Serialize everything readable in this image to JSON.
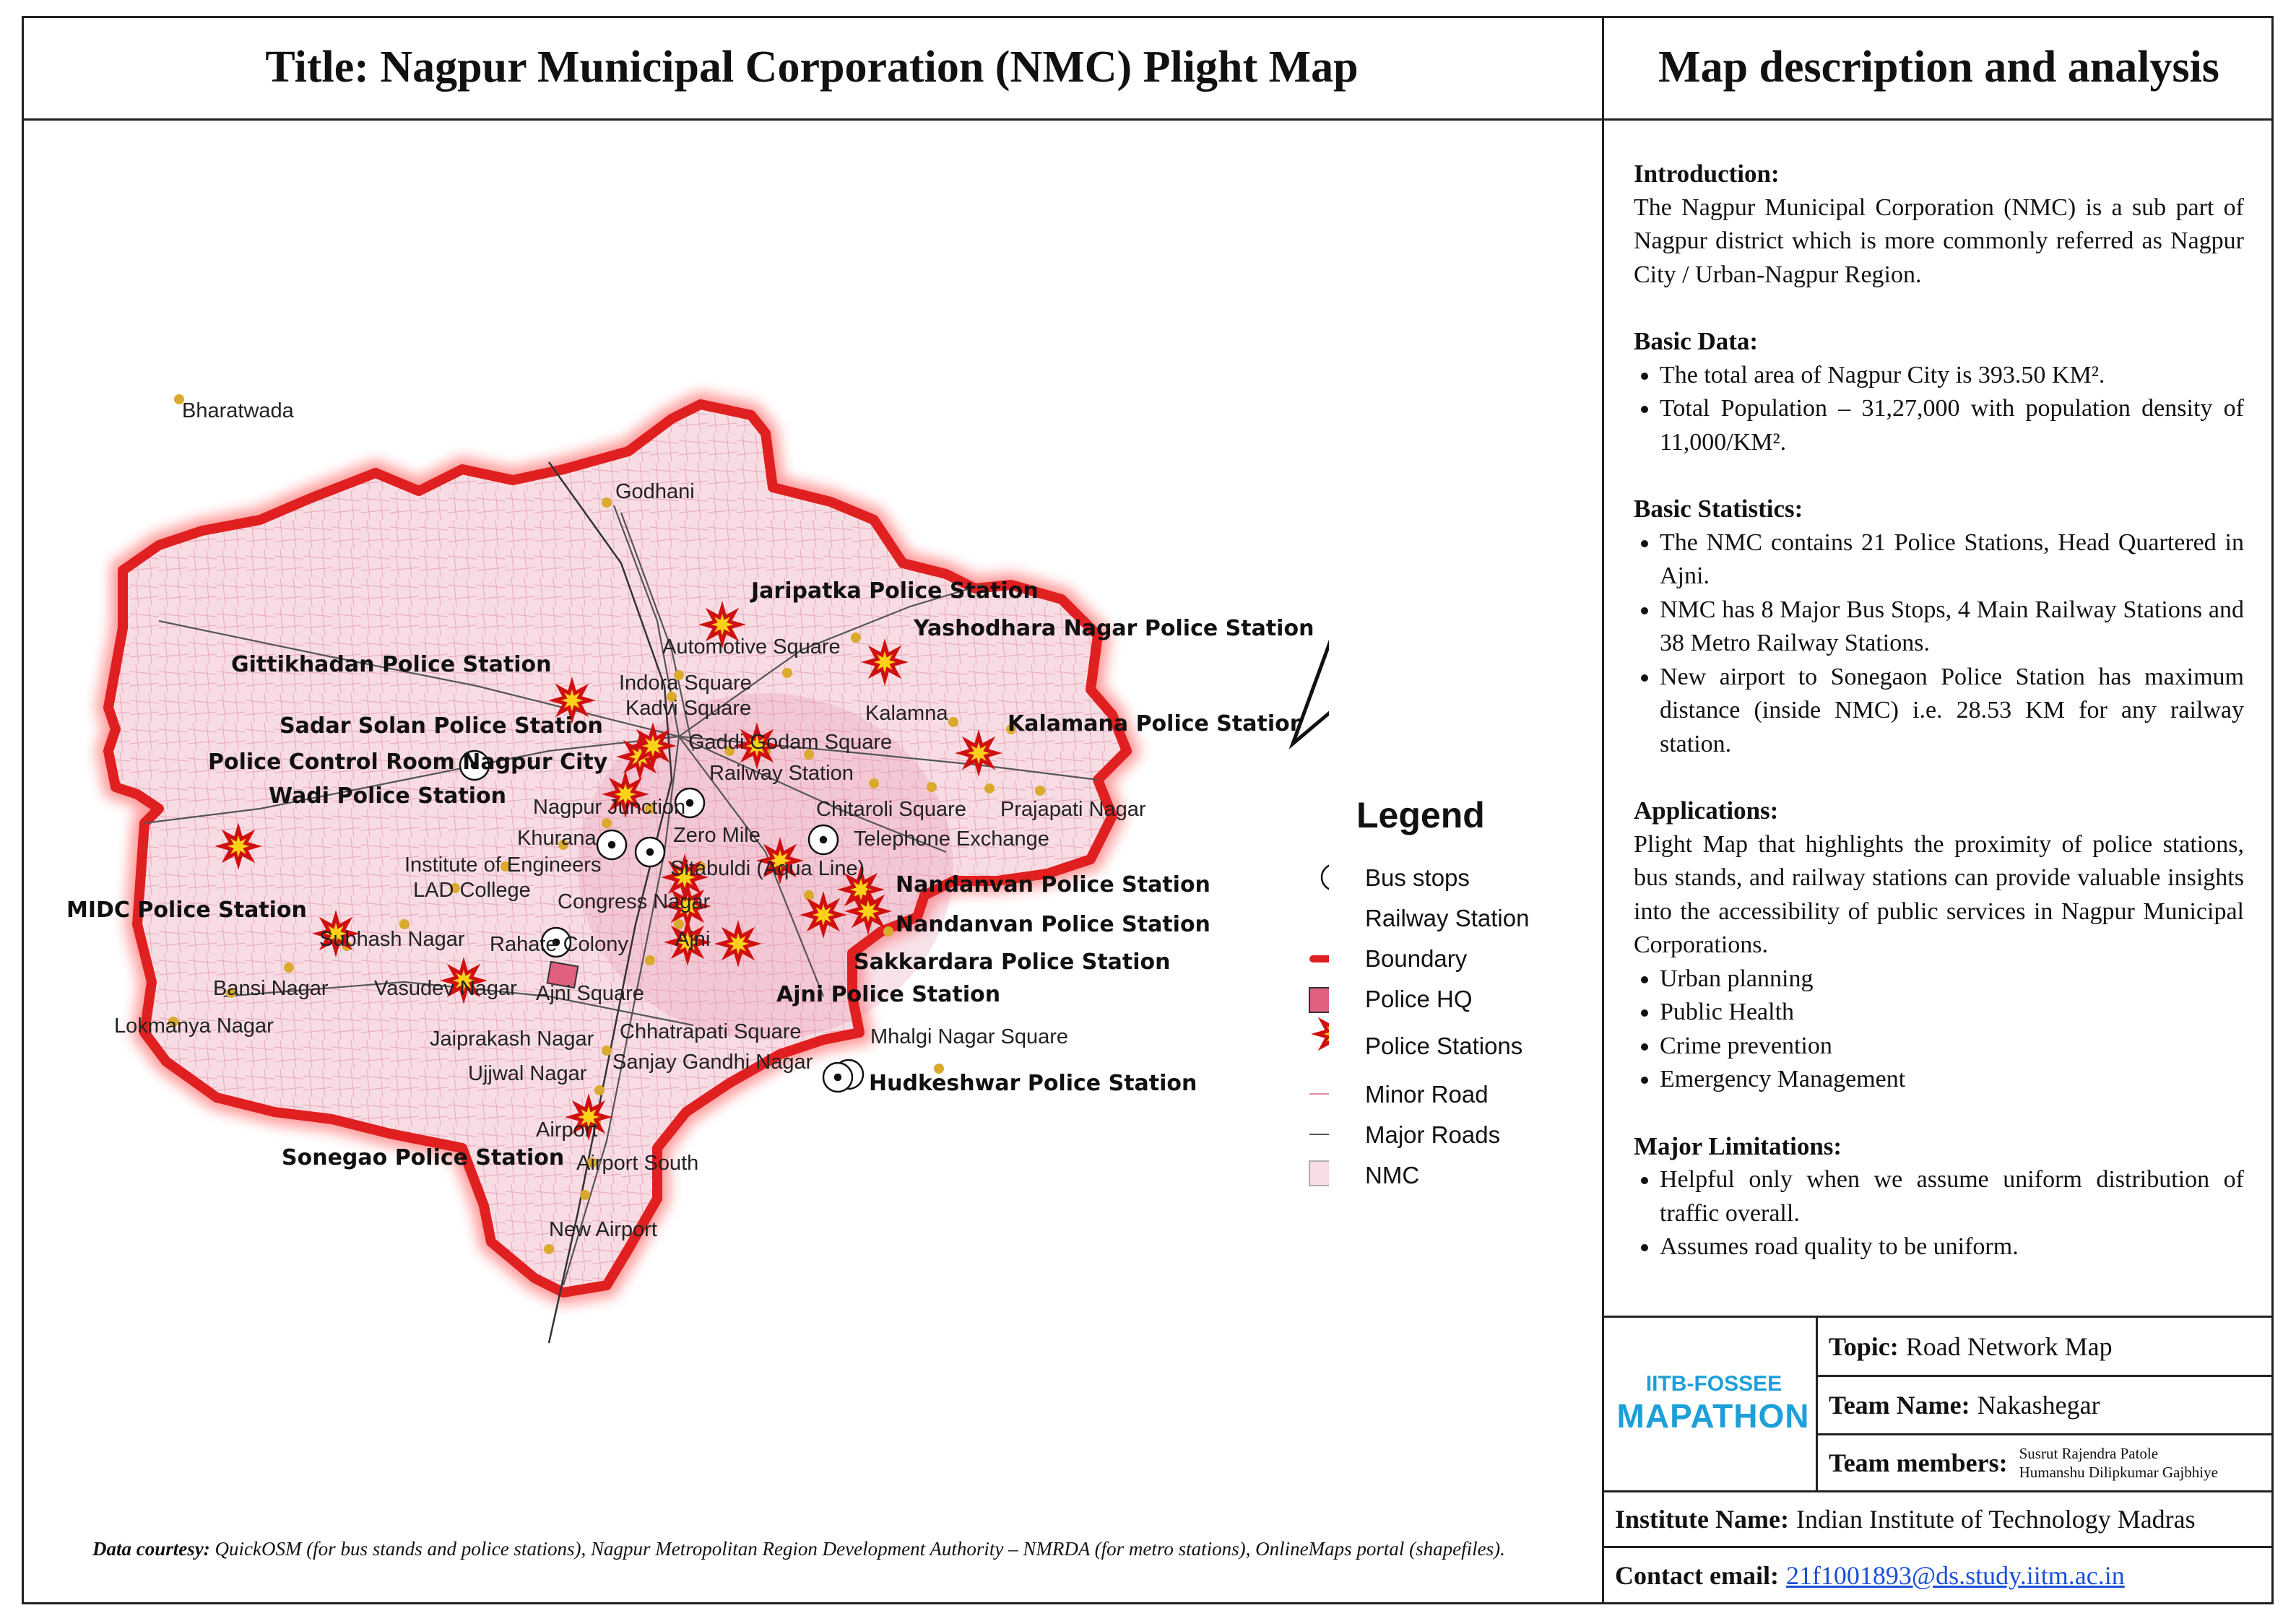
{
  "header": {
    "title": "Title: Nagpur Municipal Corporation (NMC) Plight Map",
    "side_title": "Map description and analysis"
  },
  "description": {
    "intro_heading": "Introduction:",
    "intro_text": "The Nagpur Municipal Corporation (NMC) is a sub part of Nagpur district which is more commonly referred as Nagpur City / Urban-Nagpur Region.",
    "basic_data_heading": "Basic Data:",
    "basic_data": [
      "The total area of Nagpur City is 393.50 KM².",
      "Total Population – 31,27,000 with population density of 11,000/KM²."
    ],
    "stats_heading": "Basic Statistics:",
    "stats": [
      "The NMC contains 21 Police Stations, Head Quartered in Ajni.",
      "NMC has 8 Major Bus Stops, 4 Main Railway Stations and 38 Metro Railway Stations.",
      "New airport to Sonegaon Police Station has maximum distance (inside NMC) i.e. 28.53 KM for any railway station."
    ],
    "applications_heading": "Applications:",
    "applications_text": "Plight Map that highlights the proximity of police stations, bus stands, and railway stations can provide valuable insights into the accessibility of public services in Nagpur Municipal Corporations.",
    "applications": [
      "Urban planning",
      "Public Health",
      "Crime prevention",
      "Emergency Management"
    ],
    "limitations_heading": "Major Limitations:",
    "limitations": [
      "Helpful only when we assume uniform distribution of traffic overall.",
      "Assumes road quality to be uniform."
    ]
  },
  "legend": {
    "title": "Legend",
    "items": [
      "Bus stops",
      "Railway Station",
      "Boundary",
      "Police HQ",
      "Police Stations",
      "Minor Road",
      "Major Roads",
      "NMC"
    ]
  },
  "places": {
    "bharatwada": "Bharatwada",
    "godhani": "Godhani",
    "automotive_square": "Automotive Square",
    "indora_square": "Indora Square",
    "kadvi_square": "Kadvi Square",
    "kalamna": "Kalamna",
    "gaddi_godam_square": "Gaddi Godam Square",
    "railway_station": "Railway Station",
    "nagpur_junction": "Nagpur Junction",
    "chitaroli_square": "Chitaroli Square",
    "prajapati_nagar": "Prajapati Nagar",
    "khurana": "Khurana",
    "zero_mile": "Zero Mile",
    "telephone_exchange": "Telephone Exchange",
    "institute_of_engineers": "Institute of Engineers",
    "lad_college": "LAD College",
    "sitabuldi": "Sitabuldi (Aqua Line)",
    "congress_nagar": "Congress Nagar",
    "subhash_nagar": "Subhash Nagar",
    "rahate_colony": "Rahate Colony",
    "ajni": "Ajni",
    "bansi_nagar": "Bansi Nagar",
    "vasudev_nagar": "Vasudev Nagar",
    "ajni_square": "Ajni Square",
    "lokmanya_nagar": "Lokmanya Nagar",
    "jaiprakash_nagar": "Jaiprakash Nagar",
    "chhatrapati_square": "Chhatrapati Square",
    "mhalgi_nagar_square": "Mhalgi Nagar Square",
    "ujjwal_nagar": "Ujjwal Nagar",
    "sanjay_gandhi_nagar": "Sanjay Gandhi Nagar",
    "airport": "Airport",
    "airport_south": "Airport South",
    "new_airport": "New Airport"
  },
  "police_stations": {
    "jaripatka": "Jaripatka Police Station",
    "yashodhara": "Yashodhara Nagar Police Station",
    "gittikhadan": "Gittikhadan Police Station",
    "kalamana": "Kalamana Police Station",
    "sadar": "Sadar Solan Police Station",
    "control_room": "Police Control Room Nagpur City",
    "wadi": "Wadi Police Station",
    "nandanvan1": "Nandanvan Police Station",
    "nandanvan2": "Nandanvan Police Station",
    "midc": "MIDC Police Station",
    "sakkardara": "Sakkardara Police Station",
    "ajni": "Ajni Police Station",
    "hudkeshwar": "Hudkeshwar Police Station",
    "sonegao": "Sonegao Police Station"
  },
  "footer": {
    "courtesy_label": "Data courtesy:",
    "courtesy_text": "QuickOSM (for bus stands and police stations), Nagpur Metropolitan Region Development Authority – NMRDA (for metro stations), OnlineMaps portal (shapefiles).",
    "logo_top": "IITB-FOSSEE",
    "logo_main": "MAPATHON",
    "topic_label": "Topic:",
    "topic": "Road Network Map",
    "team_label": "Team Name:",
    "team": "Nakashegar",
    "members_label": "Team members:",
    "member1": "Susrut Rajendra Patole",
    "member2": "Humanshu Dilipkumar Gajbhiye",
    "institute_label": "Institute Name:",
    "institute": "Indian Institute of Technology Madras",
    "email_label": "Contact email:",
    "email": "21f1001893@ds.study.iitm.ac.in"
  },
  "colors": {
    "boundary": "#e02020",
    "nmc_fill": "#f7dde3",
    "minor_road": "#e48aa6",
    "railway_dot": "#d9aa2c",
    "police_hq": "#e06080",
    "star": "#ffd21a",
    "logo": "#1d9fd8"
  }
}
